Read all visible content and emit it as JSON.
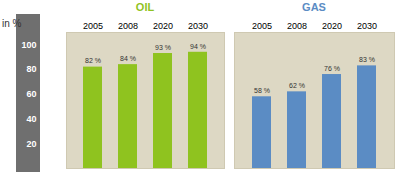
{
  "chart_data": [
    {
      "type": "bar",
      "title": "OIL",
      "ylabel": "in %",
      "categories": [
        "2005",
        "2008",
        "2020",
        "2030"
      ],
      "values": [
        82,
        84,
        93,
        94
      ],
      "value_labels": [
        "82 %",
        "84 %",
        "93 %",
        "94 %"
      ],
      "color": "#8fc31f",
      "data_labels": true,
      "ylim": [
        0,
        110
      ],
      "yticks": [
        20,
        40,
        60,
        80,
        100
      ]
    },
    {
      "type": "bar",
      "title": "GAS",
      "categories": [
        "2005",
        "2008",
        "2020",
        "2030"
      ],
      "values": [
        58,
        62,
        76,
        83
      ],
      "value_labels": [
        "58 %",
        "62 %",
        "76 %",
        "83 %"
      ],
      "color": "#5b8cc4",
      "data_labels": true,
      "tick_labels": "x",
      "ylim": [
        0,
        110
      ],
      "yticks": [
        20,
        40,
        60,
        80,
        100
      ]
    }
  ]
}
